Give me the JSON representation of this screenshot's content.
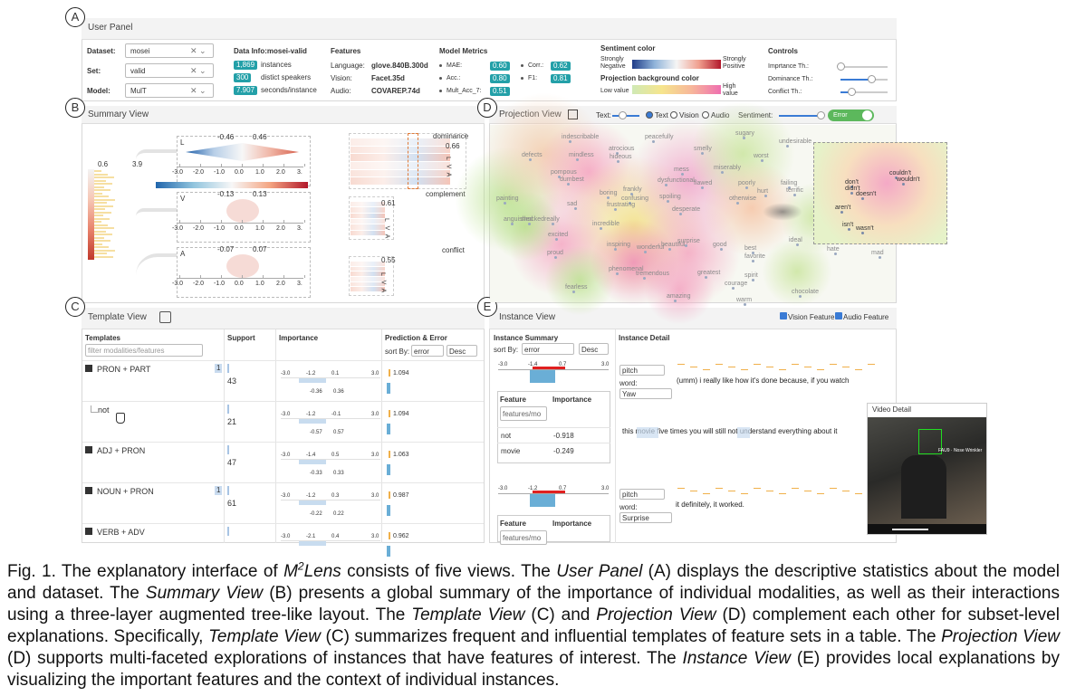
{
  "view_labels": [
    "A",
    "B",
    "C",
    "D",
    "E"
  ],
  "user_panel": {
    "title": "User Panel",
    "selectors": [
      {
        "label": "Dataset:",
        "value": "mosei"
      },
      {
        "label": "Set:",
        "value": "valid"
      },
      {
        "label": "Model:",
        "value": "MulT"
      }
    ],
    "data_info": {
      "title": "Data Info:mosei-valid",
      "rows": [
        {
          "badge": "1,869",
          "text": "instances"
        },
        {
          "badge": "300",
          "text": "distict speakers"
        },
        {
          "badge": "7.907",
          "text": "seconds/instance"
        }
      ]
    },
    "features": {
      "title": "Features",
      "rows": [
        {
          "label": "Language:",
          "value": "glove.840B.300d"
        },
        {
          "label": "Vision:",
          "value": "Facet.35d"
        },
        {
          "label": "Audio:",
          "value": "COVAREP.74d"
        }
      ]
    },
    "metrics": {
      "title": "Model Metrics",
      "rows": [
        {
          "label": "MAE:",
          "value": "0.60"
        },
        {
          "label": "Acc.:",
          "value": "0.80"
        },
        {
          "label": "Mult_Acc_7:",
          "value": "0.51"
        },
        {
          "label": "Corr.:",
          "value": "0.62"
        },
        {
          "label": "F1:",
          "value": "0.81"
        }
      ]
    },
    "sentiment": {
      "title": "Sentiment color",
      "low": "Strongly Negative",
      "high": "Strongly Positive"
    },
    "projection_bg": {
      "title": "Projection background color",
      "low": "Low value",
      "high": "High value"
    },
    "controls": {
      "title": "Controls",
      "items": [
        "Imprtance Th.:",
        "Dominance Th.:",
        "Conflict Th.:"
      ]
    }
  },
  "summary_view": {
    "title": "Summary View",
    "colorbar": [
      "0.6",
      "3.9"
    ],
    "axis_ticks": [
      "-3.0",
      "-2.0",
      "-1.0",
      "0.0",
      "1.0",
      "2.0",
      "3."
    ],
    "modalities": [
      {
        "name": "L",
        "low": "-0.46",
        "high": "0.46"
      },
      {
        "name": "V",
        "low": "-0.13",
        "high": "0.13"
      },
      {
        "name": "A",
        "low": "-0.07",
        "high": "0.07"
      }
    ],
    "interactions": [
      {
        "name": "dominance",
        "value": "0.66"
      },
      {
        "name": "complement",
        "value": "0.61"
      },
      {
        "name": "conflict",
        "value": "0.55"
      }
    ],
    "lva": [
      "L",
      "V",
      "A"
    ]
  },
  "projection_view": {
    "title": "Projection View",
    "text_label": "Text:",
    "radios": [
      "Text",
      "Vision",
      "Audio"
    ],
    "sentiment_label": "Sentiment:",
    "toggle": "Error",
    "words": [
      "indescribable",
      "atrocious",
      "peacefully",
      "smelly",
      "sugary",
      "undesirable",
      "defects",
      "mindless",
      "hideous",
      "worst",
      "pompous",
      "dumbest",
      "dysfunctional",
      "mess",
      "miserably",
      "flawed",
      "poorly",
      "failing",
      "hurt",
      "terrific",
      "boring",
      "confusing",
      "spoiling",
      "otherwise",
      "frankly",
      "desperate",
      "sad",
      "frustrating",
      "painting",
      "incredible",
      "anguished",
      "shocked",
      "excited",
      "inspiring",
      "wonderful",
      "beautiful",
      "surprise",
      "good",
      "best",
      "favorite",
      "proud",
      "tremendous",
      "phenomenal",
      "greatest",
      "spirit",
      "courage",
      "warm",
      "chocolate",
      "fearless",
      "amazing",
      "ideal",
      "hate",
      "mad",
      "really"
    ],
    "zoom_words": [
      "couldn't",
      "wouldn't",
      "don't",
      "didn't",
      "doesn't",
      "aren't",
      "isn't",
      "wasn't"
    ]
  },
  "template_view": {
    "title": "Template View",
    "columns": [
      "Templates",
      "Support",
      "Importance",
      "Prediction & Error"
    ],
    "filter": "filter modalities/features",
    "sort_label": "sort By:",
    "sort_value": "error",
    "order": "Desc",
    "badge": "1",
    "rows": [
      {
        "name": "PRON + PART",
        "support": "43",
        "ticks": [
          "-3.0",
          "-1.2",
          "0.1",
          "3.0"
        ],
        "range": [
          "-0.36",
          "0.36"
        ],
        "prediction": "1.094"
      },
      {
        "name": "not",
        "support": "21",
        "ticks": [
          "-3.0",
          "-1.2",
          "-0.1",
          "3.0"
        ],
        "range": [
          "-0.57",
          "0.57"
        ],
        "prediction": "1.094"
      },
      {
        "name": "ADJ + PRON",
        "support": "47",
        "ticks": [
          "-3.0",
          "-1.4",
          "0.5",
          "3.0"
        ],
        "range": [
          "-0.33",
          "0.33"
        ],
        "prediction": "1.063"
      },
      {
        "name": "NOUN + PRON",
        "support": "61",
        "ticks": [
          "-3.0",
          "-1.2",
          "0.3",
          "3.0"
        ],
        "range": [
          "-0.22",
          "0.22"
        ],
        "prediction": "0.987"
      },
      {
        "name": "VERB + ADV",
        "support": "",
        "ticks": [
          "-3.0",
          "-2.1",
          "0.4",
          "3.0"
        ],
        "range": [],
        "prediction": "0.962"
      }
    ]
  },
  "instance_view": {
    "title": "Instance View",
    "checks": [
      "Vision Feature",
      "Audio Feature"
    ],
    "summary_title": "Instance Summary",
    "detail_title": "Instance Detail",
    "sort_label": "sort By:",
    "sort_value": "error",
    "order": "Desc",
    "feature_columns": [
      "Feature",
      "Importance"
    ],
    "filter": "features/mo",
    "instances": [
      {
        "ticks": [
          "-3.0",
          "-1.4",
          "0.7",
          "3.0"
        ],
        "rows": [
          {
            "feature": "not",
            "importance": "-0.918"
          },
          {
            "feature": "movie",
            "importance": "-0.249"
          }
        ],
        "selects": [
          "pitch",
          "Yaw"
        ],
        "word_label": "word:",
        "lines": [
          "(umm) i   really like how it's  done because,  if    you watch",
          "this movie five times you will still not understand everything about it"
        ]
      },
      {
        "ticks": [
          "-3.0",
          "-1.2",
          "0.7",
          "3.0"
        ],
        "rows": [],
        "selects": [
          "pitch",
          "Surprise"
        ],
        "word_label": "word:",
        "lines": [
          "it   definitely,  it   worked."
        ]
      }
    ],
    "video_title": "Video Detail",
    "video_caption": "FAU9 · Nose Wrinkler"
  },
  "caption": [
    {
      "text": "Fig. 1. The explanatory interface of ",
      "style": "normal"
    },
    {
      "text": "M",
      "style": "italic"
    },
    {
      "text": "2",
      "style": "sup"
    },
    {
      "text": "Lens",
      "style": "italic"
    },
    {
      "text": " consists of five views. The ",
      "style": "normal"
    },
    {
      "text": "User Panel",
      "style": "italic"
    },
    {
      "text": "  (A) displays the descriptive statistics about the model and dataset. The ",
      "style": "normal"
    },
    {
      "text": "Summary View",
      "style": "italic"
    },
    {
      "text": " (B) presents a global summary of the importance of individual modalities, as well as their interactions using a three-layer augmented tree-like layout. The ",
      "style": "normal"
    },
    {
      "text": "Template View",
      "style": "italic"
    },
    {
      "text": " (C) and ",
      "style": "normal"
    },
    {
      "text": "Projection View",
      "style": "italic"
    },
    {
      "text": " (D) complement each other for subset-level explanations. Specifically, ",
      "style": "normal"
    },
    {
      "text": "Template View",
      "style": "italic"
    },
    {
      "text": " (C) summarizes frequent and influential templates of feature sets in a table. The ",
      "style": "normal"
    },
    {
      "text": "Projection View",
      "style": "italic"
    },
    {
      "text": " (D) supports multi-faceted explorations of instances that have features of interest. The ",
      "style": "normal"
    },
    {
      "text": "Instance View",
      "style": "italic"
    },
    {
      "text": " (E) provides local explanations by visualizing the important features and the context of individual instances.",
      "style": "normal"
    }
  ]
}
